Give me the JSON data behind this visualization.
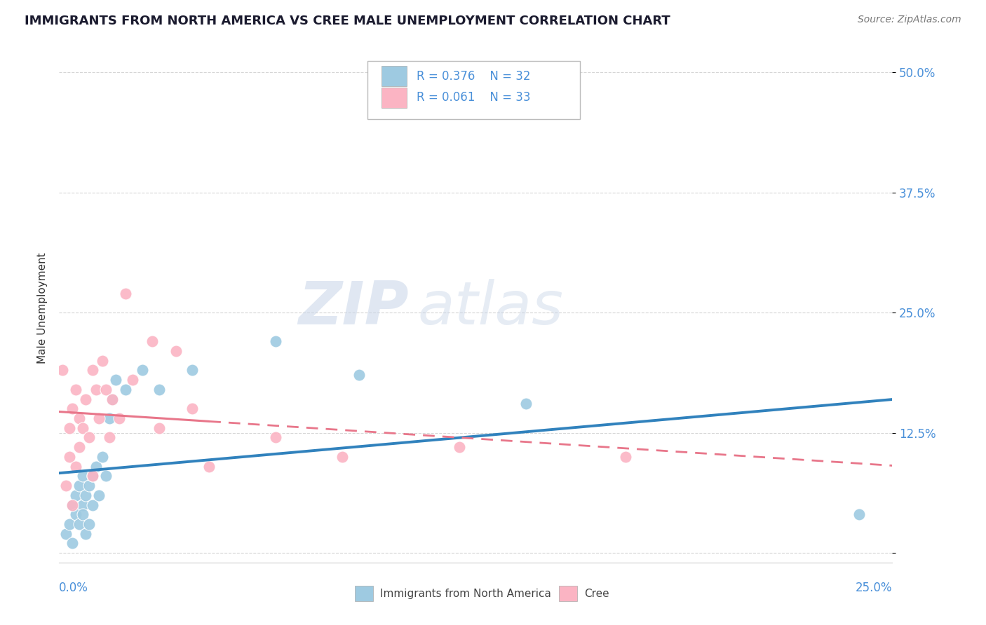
{
  "title": "IMMIGRANTS FROM NORTH AMERICA VS CREE MALE UNEMPLOYMENT CORRELATION CHART",
  "source": "Source: ZipAtlas.com",
  "ylabel": "Male Unemployment",
  "xlim": [
    0.0,
    0.25
  ],
  "ylim": [
    -0.01,
    0.52
  ],
  "yticks": [
    0.0,
    0.125,
    0.25,
    0.375,
    0.5
  ],
  "ytick_labels": [
    "",
    "12.5%",
    "25.0%",
    "37.5%",
    "50.0%"
  ],
  "legend_r1": "R = 0.376",
  "legend_n1": "N = 32",
  "legend_r2": "R = 0.061",
  "legend_n2": "N = 33",
  "blue_color": "#9ecae1",
  "pink_color": "#fbb4c3",
  "blue_line_color": "#3182bd",
  "pink_line_color": "#e8768a",
  "watermark_zip": "ZIP",
  "watermark_atlas": "atlas",
  "title_fontsize": 13,
  "ylabel_fontsize": 11,
  "tick_fontsize": 12,
  "legend_fontsize": 12,
  "source_fontsize": 10,
  "blue_x": [
    0.002,
    0.003,
    0.004,
    0.004,
    0.005,
    0.005,
    0.006,
    0.006,
    0.007,
    0.007,
    0.007,
    0.008,
    0.008,
    0.009,
    0.009,
    0.01,
    0.01,
    0.011,
    0.012,
    0.013,
    0.014,
    0.015,
    0.016,
    0.017,
    0.02,
    0.025,
    0.03,
    0.04,
    0.065,
    0.09,
    0.14,
    0.24
  ],
  "blue_y": [
    0.02,
    0.03,
    0.01,
    0.05,
    0.04,
    0.06,
    0.03,
    0.07,
    0.05,
    0.04,
    0.08,
    0.06,
    0.02,
    0.07,
    0.03,
    0.05,
    0.08,
    0.09,
    0.06,
    0.1,
    0.08,
    0.14,
    0.16,
    0.18,
    0.17,
    0.19,
    0.17,
    0.19,
    0.22,
    0.185,
    0.155,
    0.04
  ],
  "pink_x": [
    0.001,
    0.002,
    0.003,
    0.003,
    0.004,
    0.004,
    0.005,
    0.005,
    0.006,
    0.006,
    0.007,
    0.008,
    0.009,
    0.01,
    0.01,
    0.011,
    0.012,
    0.013,
    0.014,
    0.015,
    0.016,
    0.018,
    0.02,
    0.022,
    0.028,
    0.03,
    0.035,
    0.04,
    0.045,
    0.065,
    0.085,
    0.12,
    0.17
  ],
  "pink_y": [
    0.19,
    0.07,
    0.1,
    0.13,
    0.05,
    0.15,
    0.09,
    0.17,
    0.11,
    0.14,
    0.13,
    0.16,
    0.12,
    0.19,
    0.08,
    0.17,
    0.14,
    0.2,
    0.17,
    0.12,
    0.16,
    0.14,
    0.27,
    0.18,
    0.22,
    0.13,
    0.21,
    0.15,
    0.09,
    0.12,
    0.1,
    0.11,
    0.1
  ]
}
